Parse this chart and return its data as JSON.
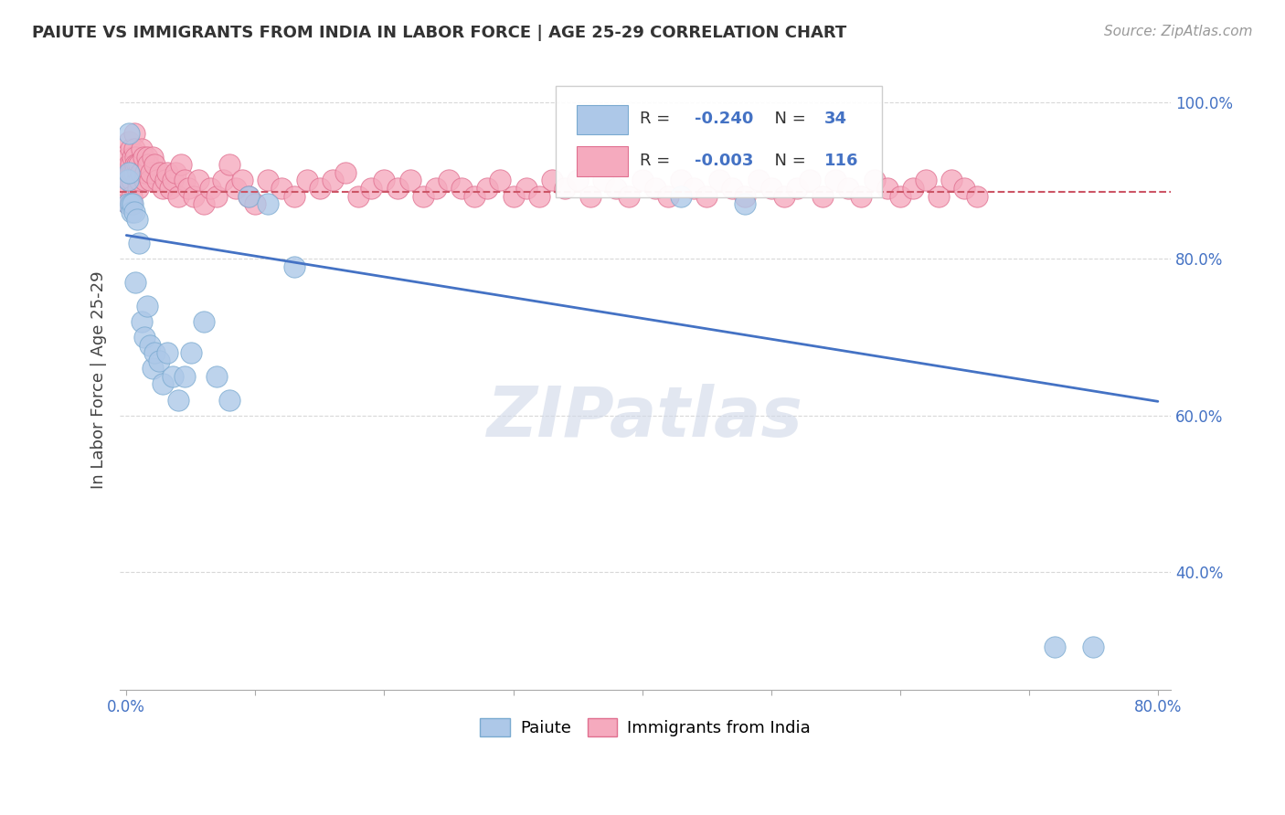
{
  "title": "PAIUTE VS IMMIGRANTS FROM INDIA IN LABOR FORCE | AGE 25-29 CORRELATION CHART",
  "source": "Source: ZipAtlas.com",
  "ylabel": "In Labor Force | Age 25-29",
  "xlim": [
    -0.005,
    0.81
  ],
  "ylim": [
    0.25,
    1.04
  ],
  "yticks": [
    0.4,
    0.6,
    0.8,
    1.0
  ],
  "ytick_labels": [
    "40.0%",
    "60.0%",
    "80.0%",
    "100.0%"
  ],
  "xticks": [
    0.0,
    0.1,
    0.2,
    0.3,
    0.4,
    0.5,
    0.6,
    0.7,
    0.8
  ],
  "xtick_labels": [
    "0.0%",
    "",
    "",
    "",
    "",
    "",
    "",
    "",
    "80.0%"
  ],
  "R_paiute": "-0.240",
  "N_paiute": "34",
  "R_india": "-0.003",
  "N_india": "116",
  "paiute_color": "#adc8e8",
  "india_color": "#f5aabe",
  "paiute_edge": "#7aaad0",
  "india_edge": "#e07090",
  "trend_paiute_color": "#4472c4",
  "trend_india_color": "#cc5566",
  "background_color": "#ffffff",
  "grid_color": "#d8d8d8",
  "watermark": "ZIPatlas",
  "paiute_x": [
    0.001,
    0.001,
    0.002,
    0.002,
    0.003,
    0.004,
    0.005,
    0.006,
    0.007,
    0.008,
    0.01,
    0.012,
    0.014,
    0.016,
    0.018,
    0.02,
    0.022,
    0.025,
    0.028,
    0.032,
    0.036,
    0.04,
    0.045,
    0.05,
    0.06,
    0.07,
    0.08,
    0.095,
    0.11,
    0.13,
    0.43,
    0.48,
    0.72,
    0.75
  ],
  "paiute_y": [
    0.9,
    0.87,
    0.96,
    0.91,
    0.87,
    0.86,
    0.87,
    0.86,
    0.77,
    0.85,
    0.82,
    0.72,
    0.7,
    0.74,
    0.69,
    0.66,
    0.68,
    0.67,
    0.64,
    0.68,
    0.65,
    0.62,
    0.65,
    0.68,
    0.72,
    0.65,
    0.62,
    0.88,
    0.87,
    0.79,
    0.88,
    0.87,
    0.305,
    0.305
  ],
  "india_x": [
    0.001,
    0.001,
    0.001,
    0.001,
    0.002,
    0.002,
    0.002,
    0.003,
    0.003,
    0.003,
    0.004,
    0.004,
    0.004,
    0.005,
    0.005,
    0.006,
    0.006,
    0.006,
    0.007,
    0.007,
    0.008,
    0.008,
    0.009,
    0.009,
    0.01,
    0.01,
    0.011,
    0.012,
    0.013,
    0.014,
    0.015,
    0.016,
    0.017,
    0.018,
    0.019,
    0.02,
    0.022,
    0.024,
    0.026,
    0.028,
    0.03,
    0.032,
    0.034,
    0.036,
    0.038,
    0.04,
    0.042,
    0.045,
    0.048,
    0.052,
    0.056,
    0.06,
    0.065,
    0.07,
    0.075,
    0.08,
    0.085,
    0.09,
    0.095,
    0.1,
    0.11,
    0.12,
    0.13,
    0.14,
    0.15,
    0.16,
    0.17,
    0.18,
    0.19,
    0.2,
    0.21,
    0.22,
    0.23,
    0.24,
    0.25,
    0.26,
    0.27,
    0.28,
    0.29,
    0.3,
    0.31,
    0.32,
    0.33,
    0.34,
    0.35,
    0.36,
    0.37,
    0.38,
    0.39,
    0.4,
    0.41,
    0.42,
    0.43,
    0.44,
    0.45,
    0.46,
    0.47,
    0.48,
    0.49,
    0.5,
    0.51,
    0.52,
    0.53,
    0.54,
    0.55,
    0.56,
    0.57,
    0.58,
    0.59,
    0.6,
    0.61,
    0.62,
    0.63,
    0.64,
    0.65,
    0.66
  ],
  "india_y": [
    0.93,
    0.91,
    0.89,
    0.87,
    0.95,
    0.92,
    0.9,
    0.94,
    0.92,
    0.91,
    0.9,
    0.88,
    0.87,
    0.93,
    0.91,
    0.96,
    0.94,
    0.91,
    0.93,
    0.92,
    0.92,
    0.9,
    0.91,
    0.89,
    0.92,
    0.9,
    0.91,
    0.94,
    0.93,
    0.9,
    0.91,
    0.93,
    0.92,
    0.9,
    0.91,
    0.93,
    0.92,
    0.9,
    0.91,
    0.89,
    0.9,
    0.91,
    0.89,
    0.9,
    0.91,
    0.88,
    0.92,
    0.9,
    0.89,
    0.88,
    0.9,
    0.87,
    0.89,
    0.88,
    0.9,
    0.92,
    0.89,
    0.9,
    0.88,
    0.87,
    0.9,
    0.89,
    0.88,
    0.9,
    0.89,
    0.9,
    0.91,
    0.88,
    0.89,
    0.9,
    0.89,
    0.9,
    0.88,
    0.89,
    0.9,
    0.89,
    0.88,
    0.89,
    0.9,
    0.88,
    0.89,
    0.88,
    0.9,
    0.89,
    0.9,
    0.88,
    0.9,
    0.89,
    0.88,
    0.9,
    0.89,
    0.88,
    0.9,
    0.89,
    0.88,
    0.9,
    0.89,
    0.88,
    0.9,
    0.89,
    0.88,
    0.89,
    0.9,
    0.88,
    0.9,
    0.89,
    0.88,
    0.9,
    0.89,
    0.88,
    0.89,
    0.9,
    0.88,
    0.9,
    0.89,
    0.88
  ],
  "trend_paiute_x0": 0.0,
  "trend_paiute_y0": 0.83,
  "trend_paiute_x1": 0.8,
  "trend_paiute_y1": 0.618,
  "trend_india_y": 0.885
}
